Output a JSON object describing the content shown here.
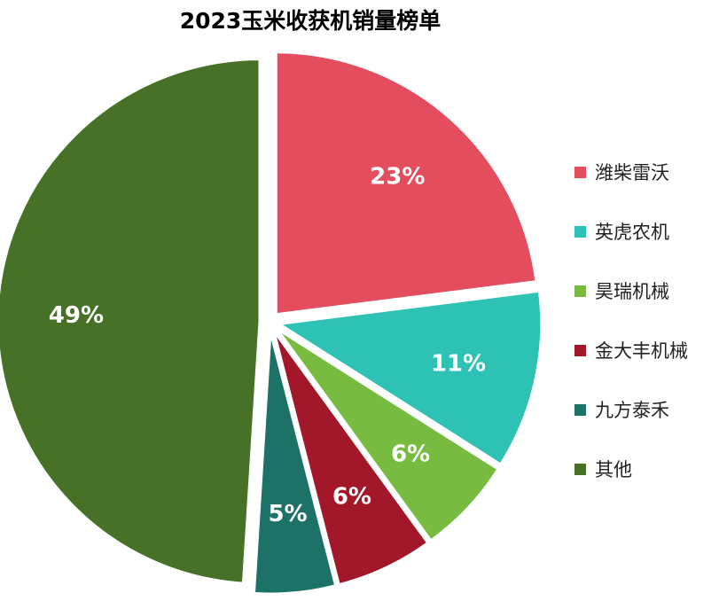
{
  "chart_data": {
    "type": "pie",
    "title": "2023玉米收获机销量榜单",
    "categories": [
      "潍柴雷沃",
      "英虎农机",
      "昊瑞机械",
      "金大丰机械",
      "九方泰禾",
      "其他"
    ],
    "values": [
      23,
      11,
      6,
      6,
      5,
      49
    ],
    "labels": [
      "23%",
      "11%",
      "6%",
      "6%",
      "5%",
      "49%"
    ],
    "colors": [
      "#e44d5e",
      "#2ec2b4",
      "#77bc41",
      "#a2182a",
      "#1d7267",
      "#477127"
    ],
    "legend_position": "right",
    "start_direction": "12 o'clock, clockwise"
  }
}
